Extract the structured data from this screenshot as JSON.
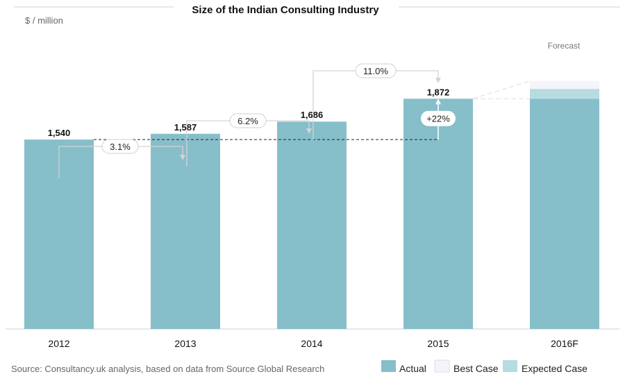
{
  "chart_data": {
    "type": "bar",
    "title": "Size of the Indian Consulting Industry",
    "unit_label": "$ / million",
    "categories": [
      "2012",
      "2013",
      "2014",
      "2015",
      "2016F"
    ],
    "series": [
      {
        "name": "Actual",
        "values": [
          1540,
          1587,
          1686,
          1872,
          1872
        ]
      },
      {
        "name": "Expected Case",
        "values": [
          null,
          null,
          null,
          null,
          80
        ]
      },
      {
        "name": "Best Case",
        "values": [
          null,
          null,
          null,
          null,
          65
        ]
      }
    ],
    "value_labels": [
      "1,540",
      "1,587",
      "1,686",
      "1,872"
    ],
    "growth_labels": [
      "3.1%",
      "6.2%",
      "11.0%"
    ],
    "cumulative_growth_label": "+22%",
    "forecast_label": "Forecast",
    "ylim": [
      0,
      2100
    ],
    "legend": {
      "position": "bottom-right",
      "entries": [
        "Actual",
        "Best Case",
        "Expected Case"
      ]
    },
    "colors": {
      "actual": "#86bec9",
      "best_case": "#f4f4fa",
      "expected_case": "#b6dbe1"
    }
  },
  "source_text": "Source: Consultancy.uk analysis, based on data from Source Global Research"
}
